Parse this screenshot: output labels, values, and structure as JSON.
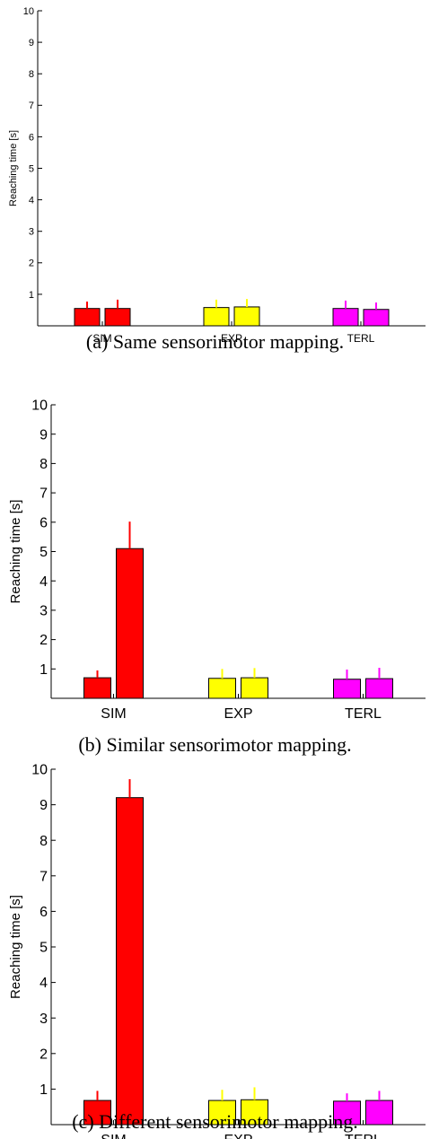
{
  "chart_data": [
    {
      "type": "bar",
      "panel": "a",
      "caption": "(a) Same sensorimotor mapping.",
      "ylabel": "Reaching time [s]",
      "ylim": [
        0,
        10
      ],
      "yticks": [
        "1",
        "2",
        "3",
        "4",
        "5",
        "6",
        "7",
        "8",
        "9",
        "10"
      ],
      "categories": [
        "SIM",
        "EXP",
        "TERL"
      ],
      "colors": [
        "#ff0000",
        "#ffff00",
        "#ff00ff"
      ],
      "bars": [
        {
          "category": "SIM",
          "values": [
            0.55,
            0.55
          ],
          "errors": [
            0.22,
            0.28
          ]
        },
        {
          "category": "EXP",
          "values": [
            0.58,
            0.6
          ],
          "errors": [
            0.25,
            0.25
          ]
        },
        {
          "category": "TERL",
          "values": [
            0.55,
            0.52
          ],
          "errors": [
            0.25,
            0.22
          ]
        }
      ]
    },
    {
      "type": "bar",
      "panel": "b",
      "caption": "(b) Similar sensorimotor mapping.",
      "ylabel": "Reaching time [s]",
      "ylim": [
        0,
        10
      ],
      "yticks": [
        "1",
        "2",
        "3",
        "4",
        "5",
        "6",
        "7",
        "8",
        "9",
        "10"
      ],
      "categories": [
        "SIM",
        "EXP",
        "TERL"
      ],
      "colors": [
        "#ff0000",
        "#ffff00",
        "#ff00ff"
      ],
      "bars": [
        {
          "category": "SIM",
          "values": [
            0.7,
            5.1
          ],
          "errors": [
            0.25,
            0.92
          ]
        },
        {
          "category": "EXP",
          "values": [
            0.68,
            0.7
          ],
          "errors": [
            0.32,
            0.33
          ]
        },
        {
          "category": "TERL",
          "values": [
            0.65,
            0.67
          ],
          "errors": [
            0.33,
            0.37
          ]
        }
      ]
    },
    {
      "type": "bar",
      "panel": "c",
      "caption": "(c) Different sensorimotor mapping.",
      "ylabel": "Reaching time [s]",
      "ylim": [
        0,
        10
      ],
      "yticks": [
        "1",
        "2",
        "3",
        "4",
        "5",
        "6",
        "7",
        "8",
        "9",
        "10"
      ],
      "categories": [
        "SIM",
        "EXP",
        "TERL"
      ],
      "colors": [
        "#ff0000",
        "#ffff00",
        "#ff00ff"
      ],
      "bars": [
        {
          "category": "SIM",
          "values": [
            0.68,
            9.2
          ],
          "errors": [
            0.27,
            0.52
          ]
        },
        {
          "category": "EXP",
          "values": [
            0.68,
            0.7
          ],
          "errors": [
            0.3,
            0.35
          ]
        },
        {
          "category": "TERL",
          "values": [
            0.66,
            0.68
          ],
          "errors": [
            0.22,
            0.27
          ]
        }
      ]
    }
  ]
}
